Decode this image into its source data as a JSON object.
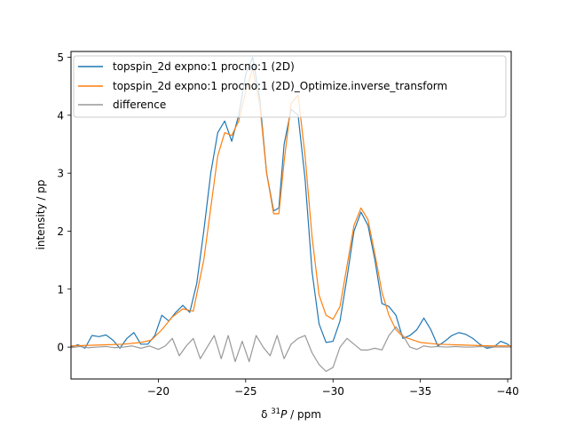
{
  "chart_data": {
    "type": "line",
    "xlabel_prefix": "δ ",
    "xlabel_sup": "31",
    "xlabel_var": "P",
    "xlabel_unit": " / ppm",
    "ylabel": "intensity / pp",
    "xlim": [
      -15.0,
      -40.2
    ],
    "ylim": [
      -0.55,
      5.1
    ],
    "x_reversed": true,
    "grid": false,
    "legend_position": "upper-right",
    "xticks": [
      -20,
      -25,
      -30,
      -35,
      -40
    ],
    "xtick_labels": [
      "−20",
      "−25",
      "−30",
      "−35",
      "−40"
    ],
    "yticks": [
      0,
      1,
      2,
      3,
      4,
      5
    ],
    "ytick_labels": [
      "0",
      "1",
      "2",
      "3",
      "4",
      "5"
    ],
    "series": [
      {
        "name": "topspin_2d expno:1 procno:1 (2D)",
        "color": "#1f77b4",
        "x": [
          -15.0,
          -15.4,
          -15.8,
          -16.2,
          -16.6,
          -17.0,
          -17.4,
          -17.8,
          -18.2,
          -18.6,
          -19.0,
          -19.4,
          -19.8,
          -20.2,
          -20.6,
          -21.0,
          -21.4,
          -21.8,
          -22.2,
          -22.6,
          -23.0,
          -23.4,
          -23.8,
          -24.2,
          -24.6,
          -25.0,
          -25.4,
          -25.8,
          -26.2,
          -26.6,
          -26.9,
          -27.2,
          -27.6,
          -28.0,
          -28.4,
          -28.8,
          -29.2,
          -29.6,
          -30.0,
          -30.4,
          -30.8,
          -31.2,
          -31.6,
          -32.0,
          -32.4,
          -32.8,
          -33.2,
          -33.6,
          -34.0,
          -34.4,
          -34.8,
          -35.2,
          -35.6,
          -36.0,
          -36.4,
          -36.8,
          -37.2,
          -37.6,
          -38.0,
          -38.4,
          -38.8,
          -39.2,
          -39.6,
          -40.0,
          -40.2
        ],
        "y": [
          0.0,
          0.04,
          -0.02,
          0.2,
          0.18,
          0.21,
          0.12,
          -0.02,
          0.15,
          0.25,
          0.05,
          0.05,
          0.2,
          0.55,
          0.45,
          0.6,
          0.72,
          0.6,
          1.1,
          2.0,
          3.0,
          3.7,
          3.9,
          3.55,
          4.0,
          4.7,
          5.0,
          4.3,
          3.0,
          2.35,
          2.4,
          3.5,
          4.1,
          4.0,
          2.9,
          1.3,
          0.4,
          0.08,
          0.1,
          0.45,
          1.2,
          2.0,
          2.33,
          2.1,
          1.5,
          0.75,
          0.7,
          0.55,
          0.15,
          0.2,
          0.3,
          0.5,
          0.3,
          0.02,
          0.1,
          0.2,
          0.25,
          0.22,
          0.15,
          0.05,
          -0.02,
          0.0,
          0.1,
          0.05,
          0.0
        ]
      },
      {
        "name": "topspin_2d expno:1 procno:1 (2D)_Optimize.inverse_transform",
        "color": "#ff7f0e",
        "x": [
          -15.0,
          -16.0,
          -17.0,
          -18.0,
          -19.0,
          -19.6,
          -20.2,
          -20.8,
          -21.4,
          -22.0,
          -22.6,
          -23.0,
          -23.4,
          -23.8,
          -24.2,
          -24.6,
          -25.0,
          -25.4,
          -25.8,
          -26.2,
          -26.6,
          -26.9,
          -27.2,
          -27.6,
          -28.0,
          -28.4,
          -28.8,
          -29.2,
          -29.6,
          -30.0,
          -30.4,
          -30.8,
          -31.2,
          -31.6,
          -32.0,
          -32.4,
          -32.8,
          -33.2,
          -33.6,
          -34.0,
          -35.0,
          -36.0,
          -37.0,
          -38.0,
          -39.0,
          -40.2
        ],
        "y": [
          0.02,
          0.03,
          0.04,
          0.05,
          0.08,
          0.12,
          0.3,
          0.52,
          0.66,
          0.62,
          1.5,
          2.4,
          3.3,
          3.7,
          3.65,
          3.9,
          4.4,
          4.8,
          4.2,
          3.0,
          2.3,
          2.3,
          3.2,
          4.2,
          4.35,
          3.3,
          1.9,
          0.9,
          0.55,
          0.48,
          0.7,
          1.4,
          2.1,
          2.4,
          2.2,
          1.6,
          0.95,
          0.55,
          0.3,
          0.18,
          0.08,
          0.05,
          0.04,
          0.03,
          0.02,
          0.02
        ]
      },
      {
        "name": "difference",
        "color": "#999999",
        "x": [
          -15.0,
          -15.5,
          -16.0,
          -16.5,
          -17.0,
          -17.5,
          -18.0,
          -18.5,
          -19.0,
          -19.5,
          -20.0,
          -20.4,
          -20.8,
          -21.2,
          -21.6,
          -22.0,
          -22.4,
          -22.8,
          -23.2,
          -23.6,
          -24.0,
          -24.4,
          -24.8,
          -25.2,
          -25.6,
          -26.0,
          -26.4,
          -26.8,
          -27.2,
          -27.6,
          -28.0,
          -28.4,
          -28.8,
          -29.2,
          -29.6,
          -30.0,
          -30.4,
          -30.8,
          -31.2,
          -31.6,
          -32.0,
          -32.4,
          -32.8,
          -33.2,
          -33.6,
          -34.0,
          -34.4,
          -34.8,
          -35.2,
          -35.6,
          -36.0,
          -36.5,
          -37.0,
          -37.5,
          -38.0,
          -38.5,
          -39.0,
          -39.5,
          -40.2
        ],
        "y": [
          -0.01,
          0.01,
          -0.01,
          0.0,
          0.01,
          -0.01,
          0.0,
          0.02,
          -0.02,
          0.02,
          -0.04,
          0.02,
          0.15,
          -0.15,
          0.02,
          0.15,
          -0.2,
          0.0,
          0.2,
          -0.2,
          0.2,
          -0.25,
          0.1,
          -0.25,
          0.2,
          0.0,
          -0.15,
          0.2,
          -0.2,
          0.05,
          0.15,
          0.2,
          -0.1,
          -0.3,
          -0.42,
          -0.35,
          0.0,
          0.15,
          0.05,
          -0.05,
          -0.05,
          -0.02,
          -0.05,
          0.2,
          0.35,
          0.2,
          0.0,
          -0.04,
          0.02,
          0.0,
          0.01,
          0.0,
          0.01,
          0.0,
          0.0,
          0.01,
          0.0,
          0.0,
          0.0
        ]
      }
    ]
  }
}
